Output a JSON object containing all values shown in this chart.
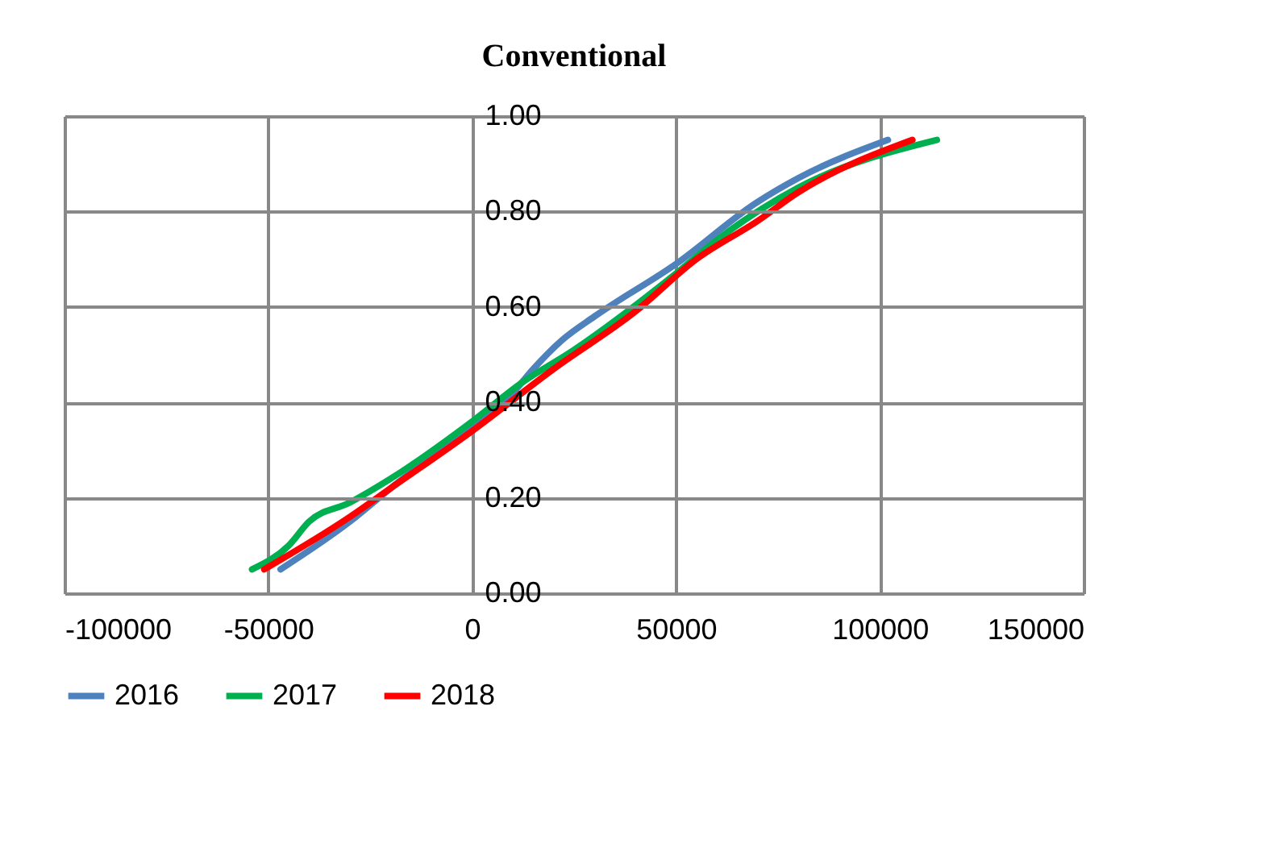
{
  "chart_data": {
    "type": "line",
    "title": "Conventional",
    "xlim": [
      -100000,
      150000
    ],
    "xticks": [
      -100000,
      -50000,
      0,
      50000,
      100000,
      150000
    ],
    "ylim": [
      0,
      1
    ],
    "yticks": [
      {
        "value": 0,
        "label": "0.00"
      },
      {
        "value": 0.2,
        "label": "0.20"
      },
      {
        "value": 0.4,
        "label": "0.40"
      },
      {
        "value": 0.6,
        "label": "0.60"
      },
      {
        "value": 0.8,
        "label": "0.80"
      },
      {
        "value": 1,
        "label": "1.00"
      }
    ],
    "grid": true,
    "legend": "bottom",
    "marker": "none",
    "line_style": "solid",
    "series": [
      {
        "name": "2016",
        "color": "#4f81bd",
        "x": [
          -47000,
          -30000,
          -20000,
          0,
          10000,
          15000,
          22000,
          30000,
          50000,
          70000,
          80000,
          102000
        ],
        "values": [
          0.05,
          0.15,
          0.22,
          0.35,
          0.42,
          0.47,
          0.53,
          0.58,
          0.69,
          0.82,
          0.87,
          0.95
        ]
      },
      {
        "name": "2017",
        "color": "#00b050",
        "x": [
          -54000,
          -45000,
          -40000,
          -30000,
          -20000,
          0,
          12000,
          25000,
          50000,
          60000,
          80000,
          114000
        ],
        "values": [
          0.05,
          0.1,
          0.15,
          0.19,
          0.24,
          0.36,
          0.44,
          0.51,
          0.67,
          0.74,
          0.85,
          0.95
        ]
      },
      {
        "name": "2018",
        "color": "#ff0000",
        "x": [
          -51000,
          -30000,
          -20000,
          0,
          20000,
          40000,
          55000,
          70000,
          80000,
          108000
        ],
        "values": [
          0.05,
          0.16,
          0.22,
          0.34,
          0.47,
          0.59,
          0.7,
          0.78,
          0.84,
          0.95
        ]
      }
    ]
  }
}
